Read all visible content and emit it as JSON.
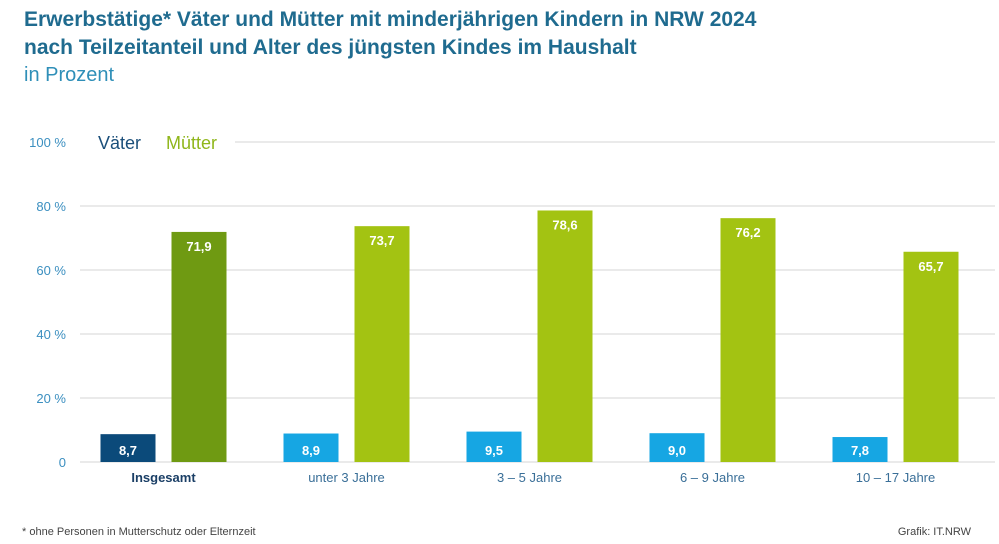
{
  "header": {
    "title_line1": "Erwerbstätige* Väter und Mütter mit minderjährigen Kindern in NRW 2024",
    "title_line2": "nach Teilzeitanteil und Alter des jüngsten Kindes im Haushalt",
    "subtitle": "in Prozent"
  },
  "footer": {
    "footnote": "*  ohne Personen in Mutterschutz oder Elternzeit",
    "source": "Grafik: IT.NRW"
  },
  "colors": {
    "vaeter_highlight": "#0b4a7a",
    "vaeter": "#16a6e3",
    "muetter_highlight": "#6f9a12",
    "muetter": "#a3c312",
    "gridline": "#d5d5d5",
    "tick_label": "#3b8fc0",
    "legend_vaeter": "#1b4f7a",
    "legend_muetter": "#8fb61a"
  },
  "chart_data": {
    "type": "bar",
    "title": "Erwerbstätige* Väter und Mütter mit minderjährigen Kindern in NRW 2024 nach Teilzeitanteil und Alter des jüngsten Kindes im Haushalt",
    "ylabel": "in Prozent",
    "ylim": [
      0,
      100
    ],
    "yticks": [
      "0",
      "20 %",
      "40 %",
      "60 %",
      "80 %",
      "100 %"
    ],
    "ytick_values": [
      0,
      20,
      40,
      60,
      80,
      100
    ],
    "grid": true,
    "legend": "top-left",
    "categories": [
      "Insgesamt",
      "unter 3 Jahre",
      "3 – 5 Jahre",
      "6 – 9 Jahre",
      "10 – 17 Jahre"
    ],
    "labels_vaeter": [
      "8,7",
      "8,9",
      "9,5",
      "9,0",
      "7,8"
    ],
    "labels_muetter": [
      "71,9",
      "73,7",
      "78,6",
      "76,2",
      "65,7"
    ],
    "series": [
      {
        "name": "Väter",
        "values": [
          8.7,
          8.9,
          9.5,
          9.0,
          7.8
        ]
      },
      {
        "name": "Mütter",
        "values": [
          71.9,
          73.7,
          78.6,
          76.2,
          65.7
        ]
      }
    ]
  }
}
